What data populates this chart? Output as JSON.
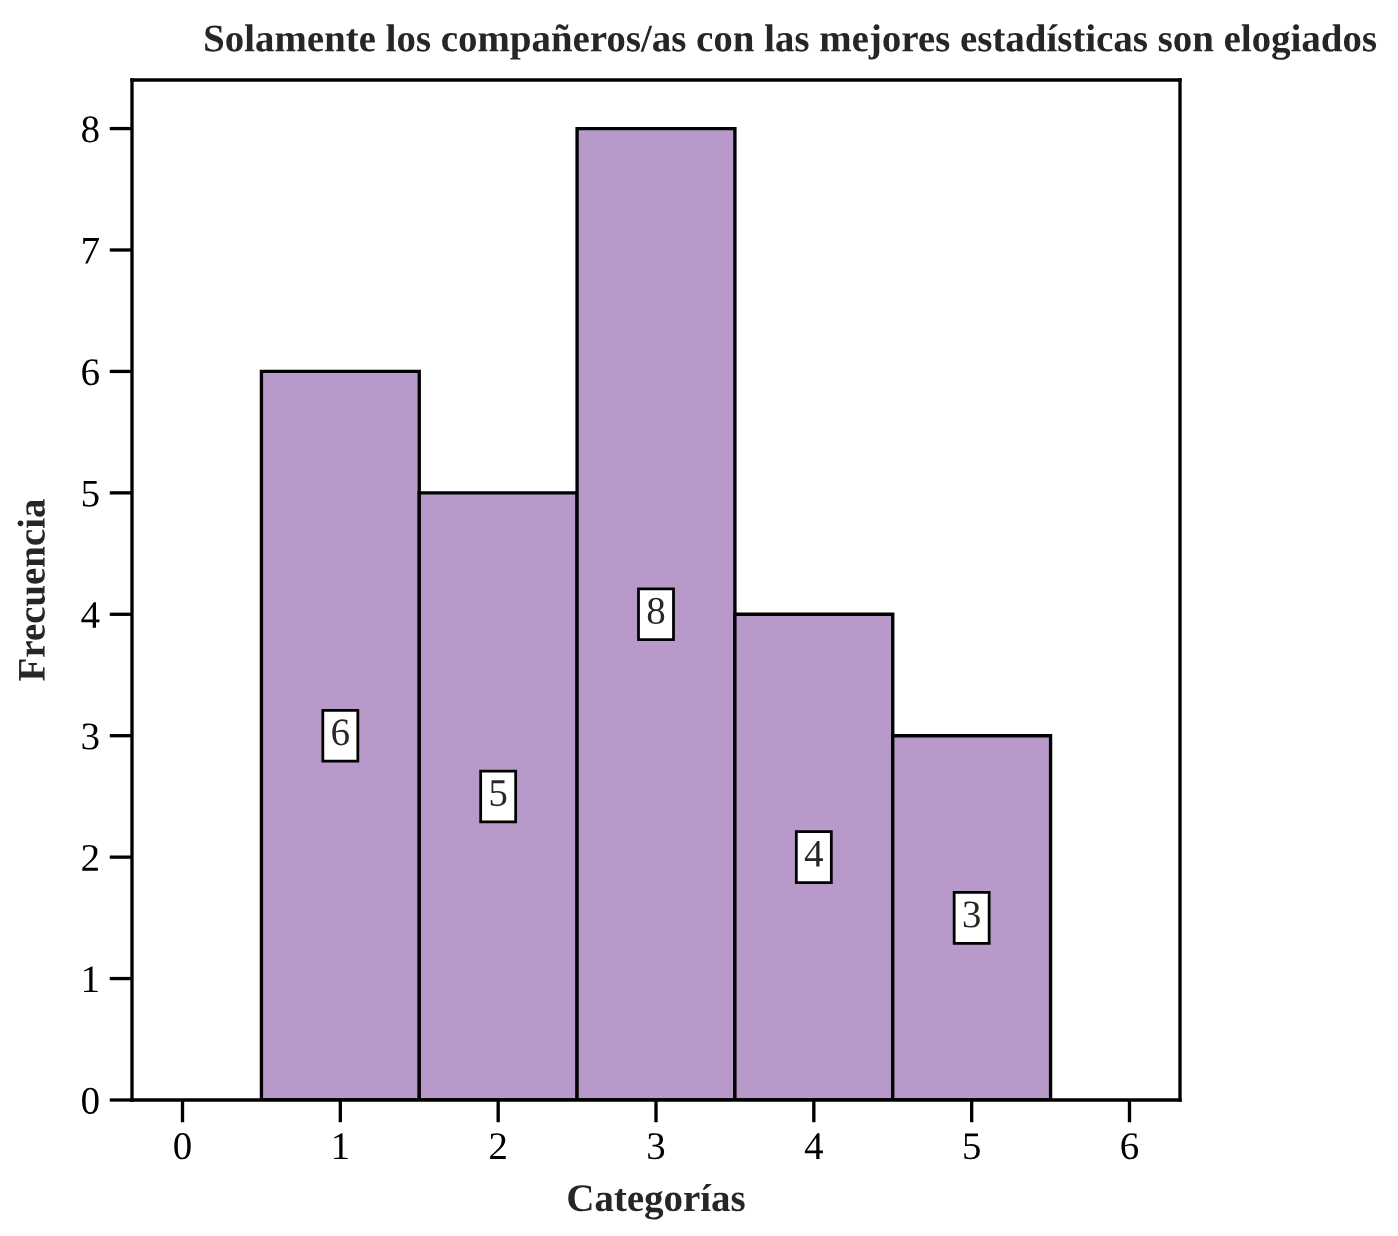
{
  "chart_data": {
    "type": "histogram",
    "title": "Solamente los compañeros/as con las mejores estadísticas son elogiados",
    "xlabel": "Categorías",
    "ylabel": "Frecuencia",
    "bins": [
      0.5,
      1.5,
      2.5,
      3.5,
      4.5,
      5.5
    ],
    "values": [
      6,
      5,
      8,
      4,
      3
    ],
    "color": "#b89aca",
    "data_labels": true,
    "xlim": [
      -0.32,
      6.32
    ],
    "xticks": [
      0,
      1,
      2,
      3,
      4,
      5,
      6
    ],
    "ylim": [
      0,
      8.4
    ],
    "yticks": [
      0,
      1,
      2,
      3,
      4,
      5,
      6,
      7,
      8
    ],
    "grid": false
  }
}
